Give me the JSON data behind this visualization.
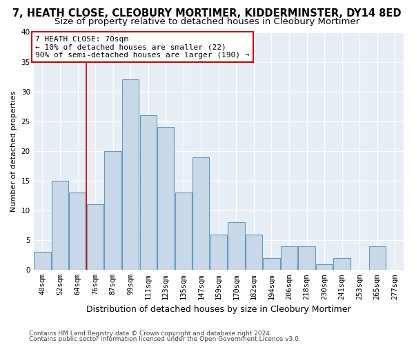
{
  "title": "7, HEATH CLOSE, CLEOBURY MORTIMER, KIDDERMINSTER, DY14 8ED",
  "subtitle": "Size of property relative to detached houses in Cleobury Mortimer",
  "xlabel": "Distribution of detached houses by size in Cleobury Mortimer",
  "ylabel": "Number of detached properties",
  "categories": [
    "40sqm",
    "52sqm",
    "64sqm",
    "76sqm",
    "87sqm",
    "99sqm",
    "111sqm",
    "123sqm",
    "135sqm",
    "147sqm",
    "159sqm",
    "170sqm",
    "182sqm",
    "194sqm",
    "206sqm",
    "218sqm",
    "230sqm",
    "241sqm",
    "253sqm",
    "265sqm",
    "277sqm"
  ],
  "values": [
    3,
    15,
    13,
    11,
    20,
    32,
    26,
    24,
    13,
    19,
    6,
    8,
    6,
    2,
    4,
    4,
    1,
    2,
    0,
    4,
    0
  ],
  "bar_color": "#c8d8e8",
  "bar_edge_color": "#6699bb",
  "ylim": [
    0,
    40
  ],
  "yticks": [
    0,
    5,
    10,
    15,
    20,
    25,
    30,
    35,
    40
  ],
  "annotation_line1": "7 HEATH CLOSE: 70sqm",
  "annotation_line2": "← 10% of detached houses are smaller (22)",
  "annotation_line3": "90% of semi-detached houses are larger (190) →",
  "red_line_x": 2.5,
  "footer1": "Contains HM Land Registry data © Crown copyright and database right 2024.",
  "footer2": "Contains public sector information licensed under the Open Government Licence v3.0.",
  "bg_color": "#e8eef5",
  "grid_color": "#ffffff",
  "title_fontsize": 10.5,
  "subtitle_fontsize": 9.5,
  "ylabel_fontsize": 8,
  "xlabel_fontsize": 9,
  "tick_fontsize": 7.5,
  "footer_fontsize": 6.5
}
